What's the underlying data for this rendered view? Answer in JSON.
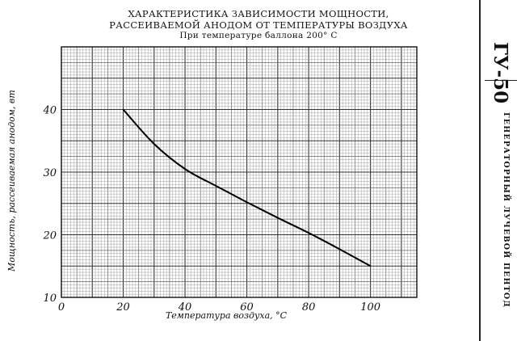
{
  "chart_data": {
    "type": "line",
    "title": "ХАРАКТЕРИСТИКА ЗАВИСИМОСТИ МОЩНОСТИ,",
    "title_line2": "РАССЕИВАЕМОЙ АНОДОМ ОТ ТЕМПЕРАТУРЫ ВОЗДУХА",
    "subtitle": "При температуре баллона 200° С",
    "xlabel": "Температура воздуха, °С",
    "ylabel": "Мощность, рассеиваемая анодом, вт",
    "xlim": [
      0,
      115
    ],
    "ylim": [
      10,
      50
    ],
    "xticks": [
      "0",
      "20",
      "40",
      "60",
      "80",
      "100"
    ],
    "yticks": [
      "10",
      "20",
      "30",
      "40"
    ],
    "grid": true,
    "series": [
      {
        "x": [
          20,
          30,
          40,
          50,
          60,
          70,
          80,
          90,
          100
        ],
        "y": [
          40,
          34.5,
          30.5,
          27.8,
          25.2,
          22.7,
          20.3,
          17.7,
          15
        ]
      }
    ]
  },
  "side_panel": {
    "code": "ГУ-50",
    "description": "ГЕНЕРАТОРНЫЙ ЛУЧЕВОЙ ПЕНТОД"
  }
}
